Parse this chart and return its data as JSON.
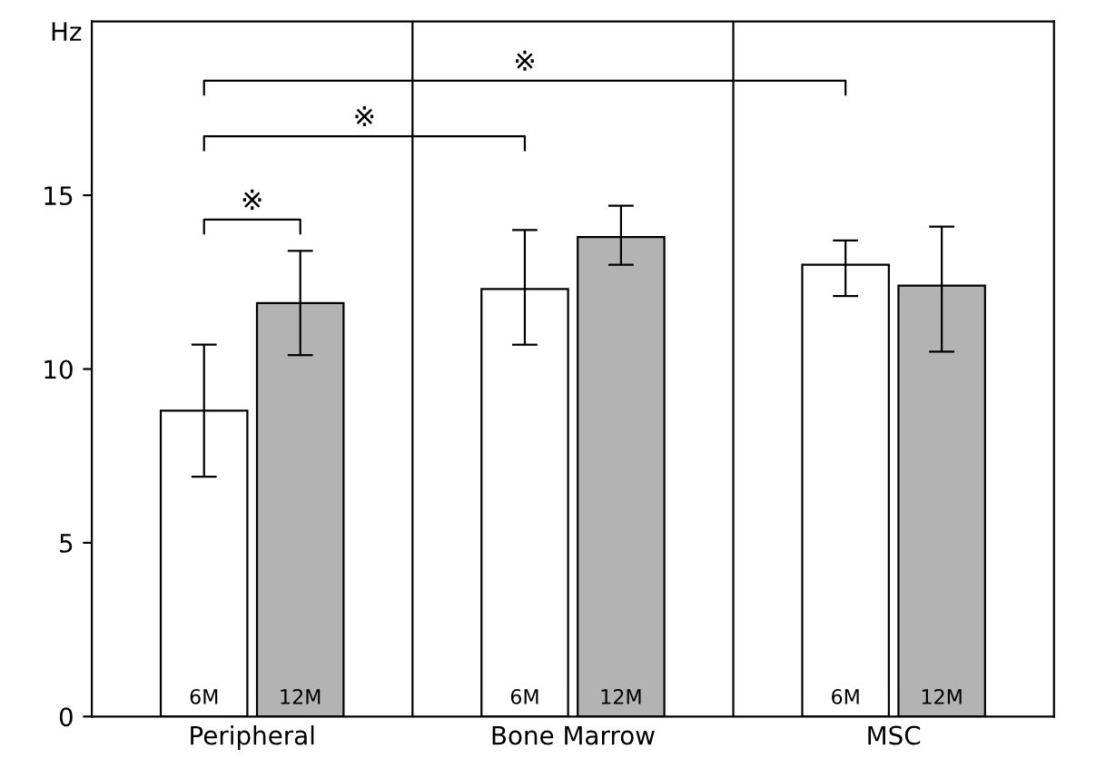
{
  "chart_data": {
    "type": "bar",
    "ylabel": "Hz",
    "categories": [
      "Peripheral",
      "Bone Marrow",
      "MSC"
    ],
    "series": [
      {
        "name": "6M",
        "color": "#ffffff",
        "values": [
          8.8,
          12.3,
          13.0
        ],
        "errors": [
          [
            6.9,
            10.7
          ],
          [
            10.7,
            14.0
          ],
          [
            12.1,
            13.7
          ]
        ]
      },
      {
        "name": "12M",
        "color": "#b3b3b3",
        "values": [
          11.9,
          13.8,
          12.4
        ],
        "errors": [
          [
            10.4,
            13.4
          ],
          [
            13.0,
            14.7
          ],
          [
            10.5,
            14.1
          ]
        ]
      }
    ],
    "ylim": [
      0,
      20
    ],
    "yticks": [
      0,
      5,
      10,
      15
    ],
    "annotations": [
      "※",
      "※",
      "※"
    ],
    "grid": false,
    "legend": false
  }
}
